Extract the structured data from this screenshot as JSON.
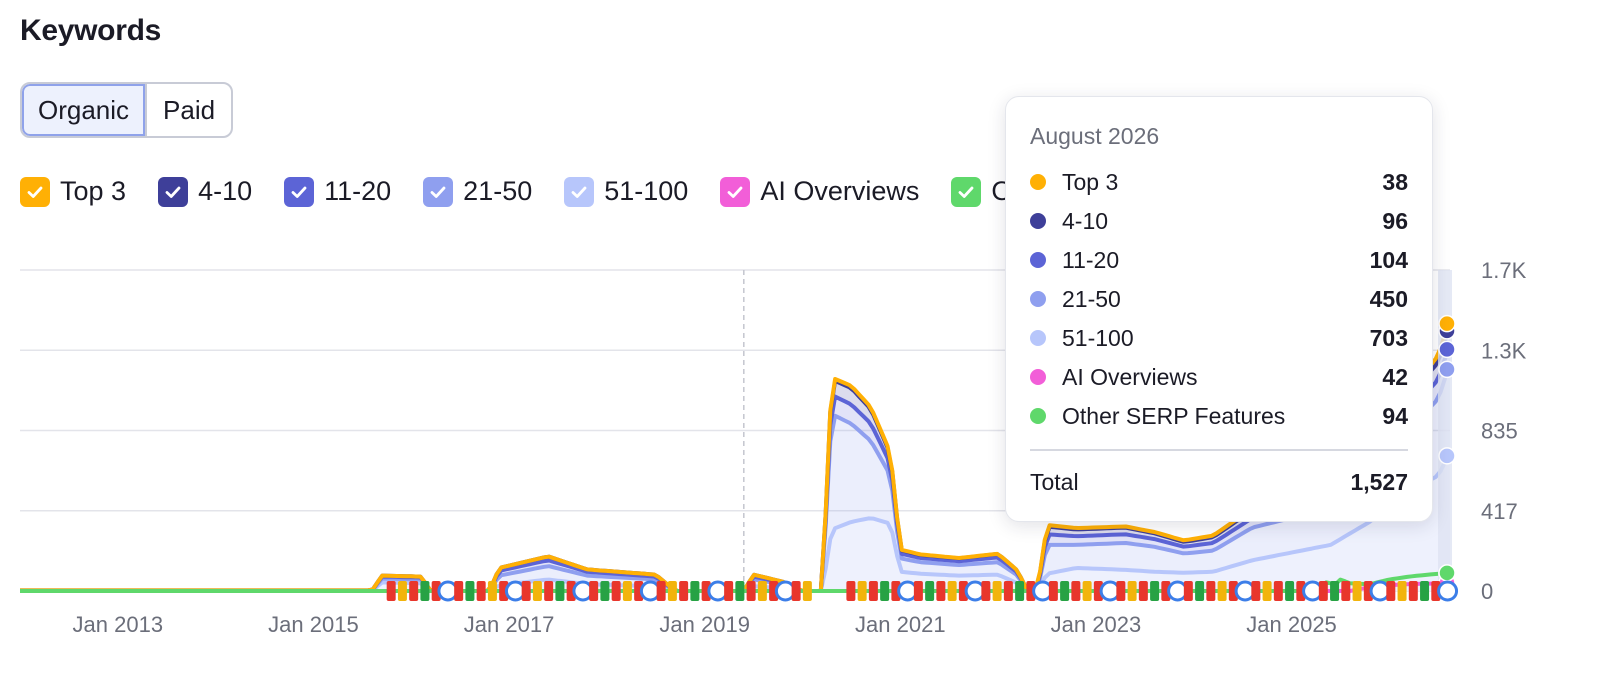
{
  "page": {
    "title": "Keywords"
  },
  "tabs": [
    {
      "label": "Organic",
      "active": true
    },
    {
      "label": "Paid",
      "active": false
    }
  ],
  "legend": [
    {
      "key": "top3",
      "label": "Top 3",
      "color": "#ffb005",
      "checked": true
    },
    {
      "key": "p4_10",
      "label": "4-10",
      "color": "#3e3f99",
      "checked": true
    },
    {
      "key": "p11_20",
      "label": "11-20",
      "color": "#5c64d6",
      "checked": true
    },
    {
      "key": "p21_50",
      "label": "21-50",
      "color": "#8f9fef",
      "checked": true
    },
    {
      "key": "p51_100",
      "label": "51-100",
      "color": "#b7c6fb",
      "checked": true
    },
    {
      "key": "ai",
      "label": "AI Overviews",
      "color": "#f25ed8",
      "checked": true
    },
    {
      "key": "other",
      "label": "Other SERP Features",
      "color": "#5fd86b",
      "checked": true
    }
  ],
  "tooltip": {
    "date": "August 2026",
    "rows": [
      {
        "label": "Top 3",
        "value": "38",
        "color": "#ffb005"
      },
      {
        "label": "4-10",
        "value": "96",
        "color": "#3e3f99"
      },
      {
        "label": "11-20",
        "value": "104",
        "color": "#5c64d6"
      },
      {
        "label": "21-50",
        "value": "450",
        "color": "#8f9fef"
      },
      {
        "label": "51-100",
        "value": "703",
        "color": "#b7c6fb"
      },
      {
        "label": "AI Overviews",
        "value": "42",
        "color": "#f25ed8"
      },
      {
        "label": "Other SERP Features",
        "value": "94",
        "color": "#5fd86b"
      }
    ],
    "total_label": "Total",
    "total_value": "1,527"
  },
  "chart_data": {
    "type": "area",
    "stacked": true,
    "x_ticks": [
      "Jan 2013",
      "Jan 2015",
      "Jan 2017",
      "Jan 2019",
      "Jan 2021",
      "Jan 2023",
      "Jan 2025"
    ],
    "y_ticks": [
      "0",
      "417",
      "835",
      "1.3K",
      "1.7K"
    ],
    "ylim": [
      0,
      1670
    ],
    "xlim": [
      2012.0,
      2026.62
    ],
    "hover_x": 2019.4,
    "series": [
      {
        "name": "51-100",
        "color": "#b7c6fb",
        "points": [
          [
            2012.0,
            0
          ],
          [
            2015.6,
            0
          ],
          [
            2015.7,
            45
          ],
          [
            2016.1,
            40
          ],
          [
            2016.2,
            0
          ],
          [
            2016.8,
            0
          ],
          [
            2016.9,
            30
          ],
          [
            2017.4,
            60
          ],
          [
            2017.8,
            35
          ],
          [
            2018.5,
            25
          ],
          [
            2018.7,
            0
          ],
          [
            2019.4,
            0
          ],
          [
            2019.5,
            25
          ],
          [
            2019.8,
            15
          ],
          [
            2020.0,
            0
          ],
          [
            2020.2,
            0
          ],
          [
            2020.3,
            320
          ],
          [
            2020.5,
            360
          ],
          [
            2020.7,
            380
          ],
          [
            2020.9,
            350
          ],
          [
            2021.0,
            100
          ],
          [
            2021.2,
            90
          ],
          [
            2021.6,
            80
          ],
          [
            2022.0,
            85
          ],
          [
            2022.2,
            40
          ],
          [
            2022.3,
            0
          ],
          [
            2022.4,
            0
          ],
          [
            2022.5,
            90
          ],
          [
            2022.8,
            120
          ],
          [
            2023.3,
            110
          ],
          [
            2023.6,
            100
          ],
          [
            2023.9,
            95
          ],
          [
            2024.2,
            100
          ],
          [
            2024.6,
            160
          ],
          [
            2025.0,
            200
          ],
          [
            2025.4,
            240
          ],
          [
            2025.8,
            360
          ],
          [
            2026.2,
            520
          ],
          [
            2026.5,
            600
          ],
          [
            2026.6,
            703
          ]
        ]
      },
      {
        "name": "21-50",
        "color": "#8f9fef",
        "points": [
          [
            2012.0,
            0
          ],
          [
            2015.6,
            0
          ],
          [
            2015.7,
            20
          ],
          [
            2016.1,
            20
          ],
          [
            2016.2,
            0
          ],
          [
            2016.8,
            0
          ],
          [
            2016.9,
            50
          ],
          [
            2017.4,
            70
          ],
          [
            2017.8,
            45
          ],
          [
            2018.5,
            35
          ],
          [
            2018.7,
            0
          ],
          [
            2019.4,
            0
          ],
          [
            2019.5,
            35
          ],
          [
            2019.8,
            20
          ],
          [
            2020.0,
            0
          ],
          [
            2020.2,
            0
          ],
          [
            2020.3,
            600
          ],
          [
            2020.5,
            510
          ],
          [
            2020.7,
            400
          ],
          [
            2020.9,
            250
          ],
          [
            2021.0,
            70
          ],
          [
            2021.2,
            60
          ],
          [
            2021.6,
            55
          ],
          [
            2022.0,
            65
          ],
          [
            2022.2,
            40
          ],
          [
            2022.3,
            0
          ],
          [
            2022.4,
            0
          ],
          [
            2022.5,
            150
          ],
          [
            2022.8,
            120
          ],
          [
            2023.3,
            140
          ],
          [
            2023.6,
            130
          ],
          [
            2023.9,
            100
          ],
          [
            2024.2,
            110
          ],
          [
            2024.6,
            170
          ],
          [
            2025.0,
            180
          ],
          [
            2025.4,
            200
          ],
          [
            2025.8,
            260
          ],
          [
            2026.2,
            320
          ],
          [
            2026.5,
            400
          ],
          [
            2026.6,
            450
          ]
        ]
      },
      {
        "name": "11-20",
        "color": "#5c64d6",
        "points": [
          [
            2012.0,
            2
          ],
          [
            2015.6,
            2
          ],
          [
            2015.7,
            10
          ],
          [
            2016.1,
            10
          ],
          [
            2016.2,
            0
          ],
          [
            2016.8,
            0
          ],
          [
            2016.9,
            25
          ],
          [
            2017.4,
            30
          ],
          [
            2017.8,
            20
          ],
          [
            2018.5,
            15
          ],
          [
            2018.7,
            0
          ],
          [
            2019.4,
            0
          ],
          [
            2019.5,
            15
          ],
          [
            2019.8,
            8
          ],
          [
            2020.0,
            0
          ],
          [
            2020.2,
            0
          ],
          [
            2020.3,
            100
          ],
          [
            2020.5,
            100
          ],
          [
            2020.7,
            90
          ],
          [
            2020.9,
            60
          ],
          [
            2021.0,
            25
          ],
          [
            2021.2,
            22
          ],
          [
            2021.6,
            20
          ],
          [
            2022.0,
            25
          ],
          [
            2022.2,
            15
          ],
          [
            2022.3,
            0
          ],
          [
            2022.4,
            0
          ],
          [
            2022.5,
            55
          ],
          [
            2022.8,
            45
          ],
          [
            2023.3,
            45
          ],
          [
            2023.6,
            40
          ],
          [
            2023.9,
            35
          ],
          [
            2024.2,
            40
          ],
          [
            2024.6,
            50
          ],
          [
            2025.0,
            60
          ],
          [
            2025.4,
            65
          ],
          [
            2025.8,
            80
          ],
          [
            2026.2,
            90
          ],
          [
            2026.5,
            100
          ],
          [
            2026.6,
            104
          ]
        ]
      },
      {
        "name": "4-10",
        "color": "#3e3f99",
        "points": [
          [
            2012.0,
            1
          ],
          [
            2015.6,
            1
          ],
          [
            2015.7,
            5
          ],
          [
            2016.1,
            5
          ],
          [
            2016.2,
            0
          ],
          [
            2016.8,
            0
          ],
          [
            2016.9,
            15
          ],
          [
            2017.4,
            20
          ],
          [
            2017.8,
            12
          ],
          [
            2018.5,
            10
          ],
          [
            2018.7,
            0
          ],
          [
            2019.4,
            0
          ],
          [
            2019.5,
            10
          ],
          [
            2019.8,
            5
          ],
          [
            2020.0,
            0
          ],
          [
            2020.2,
            0
          ],
          [
            2020.3,
            80
          ],
          [
            2020.5,
            85
          ],
          [
            2020.7,
            75
          ],
          [
            2020.9,
            50
          ],
          [
            2021.0,
            18
          ],
          [
            2021.2,
            16
          ],
          [
            2021.6,
            15
          ],
          [
            2022.0,
            18
          ],
          [
            2022.2,
            10
          ],
          [
            2022.3,
            0
          ],
          [
            2022.4,
            0
          ],
          [
            2022.5,
            40
          ],
          [
            2022.8,
            35
          ],
          [
            2023.3,
            35
          ],
          [
            2023.6,
            30
          ],
          [
            2023.9,
            25
          ],
          [
            2024.2,
            30
          ],
          [
            2024.6,
            40
          ],
          [
            2025.0,
            50
          ],
          [
            2025.4,
            55
          ],
          [
            2025.8,
            70
          ],
          [
            2026.2,
            80
          ],
          [
            2026.5,
            90
          ],
          [
            2026.6,
            96
          ]
        ]
      },
      {
        "name": "Top 3",
        "color": "#ffb005",
        "points": [
          [
            2012.0,
            0
          ],
          [
            2020.2,
            0
          ],
          [
            2020.3,
            10
          ],
          [
            2020.5,
            12
          ],
          [
            2020.7,
            10
          ],
          [
            2020.9,
            8
          ],
          [
            2021.0,
            3
          ],
          [
            2022.3,
            0
          ],
          [
            2022.5,
            8
          ],
          [
            2023.3,
            6
          ],
          [
            2024.6,
            10
          ],
          [
            2025.4,
            15
          ],
          [
            2026.2,
            25
          ],
          [
            2026.6,
            38
          ]
        ]
      }
    ],
    "overlay_series": [
      {
        "name": "AI Overviews",
        "color": "#f25ed8",
        "points": [
          [
            2012.0,
            0
          ],
          [
            2025.6,
            0
          ],
          [
            2025.8,
            20
          ],
          [
            2026.0,
            30
          ],
          [
            2026.2,
            36
          ],
          [
            2026.4,
            38
          ],
          [
            2026.6,
            42
          ]
        ]
      },
      {
        "name": "Other SERP Features",
        "color": "#5fd86b",
        "points": [
          [
            2012.0,
            0
          ],
          [
            2024.9,
            0
          ],
          [
            2025.3,
            0
          ],
          [
            2025.35,
            45
          ],
          [
            2025.45,
            35
          ],
          [
            2025.5,
            60
          ],
          [
            2025.6,
            40
          ],
          [
            2025.8,
            35
          ],
          [
            2026.0,
            60
          ],
          [
            2026.2,
            75
          ],
          [
            2026.4,
            85
          ],
          [
            2026.6,
            94
          ]
        ]
      }
    ],
    "serp_marker_ranges": [
      [
        2015.8,
        2020.1
      ],
      [
        2020.5,
        2026.6
      ]
    ]
  }
}
